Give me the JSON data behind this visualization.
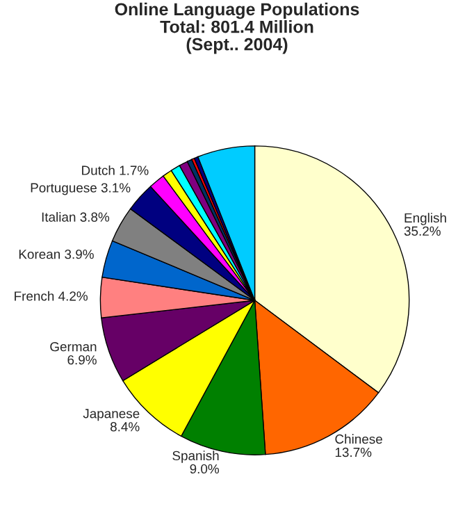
{
  "chart_data": {
    "type": "pie",
    "title": "Online Language Populations\nTotal: 801.4 Million\n(Sept.. 2004)",
    "categories": [
      "English",
      "Chinese",
      "Spanish",
      "Japanese",
      "German",
      "French",
      "Korean",
      "Italian",
      "Portuguese",
      "Dutch",
      null,
      null,
      null,
      null,
      null,
      null,
      null
    ],
    "values": [
      35.2,
      13.7,
      9.0,
      8.4,
      6.9,
      4.2,
      3.9,
      3.8,
      3.1,
      1.7,
      1.0,
      1.0,
      0.9,
      0.5,
      0.3,
      0.4,
      6.0
    ],
    "value_labels": [
      "35.2%",
      "13.7%",
      "9.0%",
      "8.4%",
      "6.9%",
      "4.2%",
      "3.9%",
      "3.8%",
      "3.1%",
      "1.7%",
      null,
      null,
      null,
      null,
      null,
      null,
      null
    ],
    "colors": [
      "#ffffcc",
      "#ff6600",
      "#008000",
      "#ffff00",
      "#660066",
      "#ff8080",
      "#0066cc",
      "#808080",
      "#000080",
      "#ff00ff",
      "#ffff00",
      "#00ffff",
      "#800080",
      "#003366",
      "#ff0000",
      "#000080",
      "#00ccff"
    ]
  }
}
